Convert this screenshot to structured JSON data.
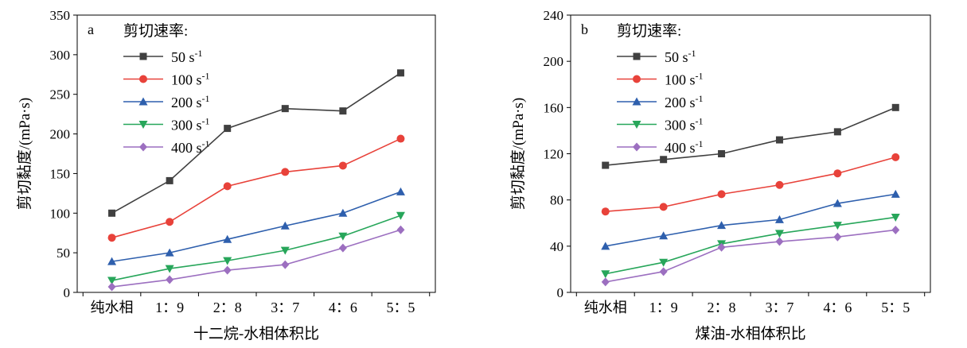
{
  "legend_title": "剪切速率:",
  "chart_data": [
    {
      "type": "line",
      "panel_label": "a",
      "title": "",
      "xlabel": "十二烷-水相体积比",
      "ylabel": "剪切黏度/(mPa·s)",
      "categories": [
        "纯水相",
        "1：9",
        "2：8",
        "3：7",
        "4：6",
        "5：5"
      ],
      "ylim": [
        0,
        350
      ],
      "yticks": [
        0,
        50,
        100,
        150,
        200,
        250,
        300,
        350
      ],
      "grid": false,
      "legend_position": "top-left",
      "series": [
        {
          "name": "50 s",
          "unit_sup": "-1",
          "color": "#404040",
          "marker": "square",
          "values": [
            100,
            141,
            207,
            232,
            229,
            277
          ]
        },
        {
          "name": "100 s",
          "unit_sup": "-1",
          "color": "#e8423a",
          "marker": "circle",
          "values": [
            69,
            89,
            134,
            152,
            160,
            194
          ]
        },
        {
          "name": "200 s",
          "unit_sup": "-1",
          "color": "#2e5fad",
          "marker": "triangle",
          "values": [
            39,
            50,
            67,
            84,
            100,
            127
          ]
        },
        {
          "name": "300 s",
          "unit_sup": "-1",
          "color": "#27a65a",
          "marker": "tri-down",
          "values": [
            15,
            30,
            40,
            53,
            71,
            97
          ]
        },
        {
          "name": "400 s",
          "unit_sup": "-1",
          "color": "#9c6fc0",
          "marker": "diamond",
          "values": [
            7,
            16,
            28,
            35,
            56,
            79
          ]
        }
      ]
    },
    {
      "type": "line",
      "panel_label": "b",
      "title": "",
      "xlabel": "煤油-水相体积比",
      "ylabel": "剪切黏度/(mPa·s)",
      "categories": [
        "纯水相",
        "1：9",
        "2：8",
        "3：7",
        "4：6",
        "5：5"
      ],
      "ylim": [
        0,
        240
      ],
      "yticks": [
        0,
        40,
        80,
        120,
        160,
        200,
        240
      ],
      "grid": false,
      "legend_position": "top-left",
      "series": [
        {
          "name": "50 s",
          "unit_sup": "-1",
          "color": "#404040",
          "marker": "square",
          "values": [
            110,
            115,
            120,
            132,
            139,
            160
          ]
        },
        {
          "name": "100 s",
          "unit_sup": "-1",
          "color": "#e8423a",
          "marker": "circle",
          "values": [
            70,
            74,
            85,
            93,
            103,
            117
          ]
        },
        {
          "name": "200 s",
          "unit_sup": "-1",
          "color": "#2e5fad",
          "marker": "triangle",
          "values": [
            40,
            49,
            58,
            63,
            77,
            85
          ]
        },
        {
          "name": "300 s",
          "unit_sup": "-1",
          "color": "#27a65a",
          "marker": "tri-down",
          "values": [
            16,
            26,
            42,
            51,
            58,
            65
          ]
        },
        {
          "name": "400 s",
          "unit_sup": "-1",
          "color": "#9c6fc0",
          "marker": "diamond",
          "values": [
            9,
            18,
            39,
            44,
            48,
            54
          ]
        }
      ]
    }
  ]
}
